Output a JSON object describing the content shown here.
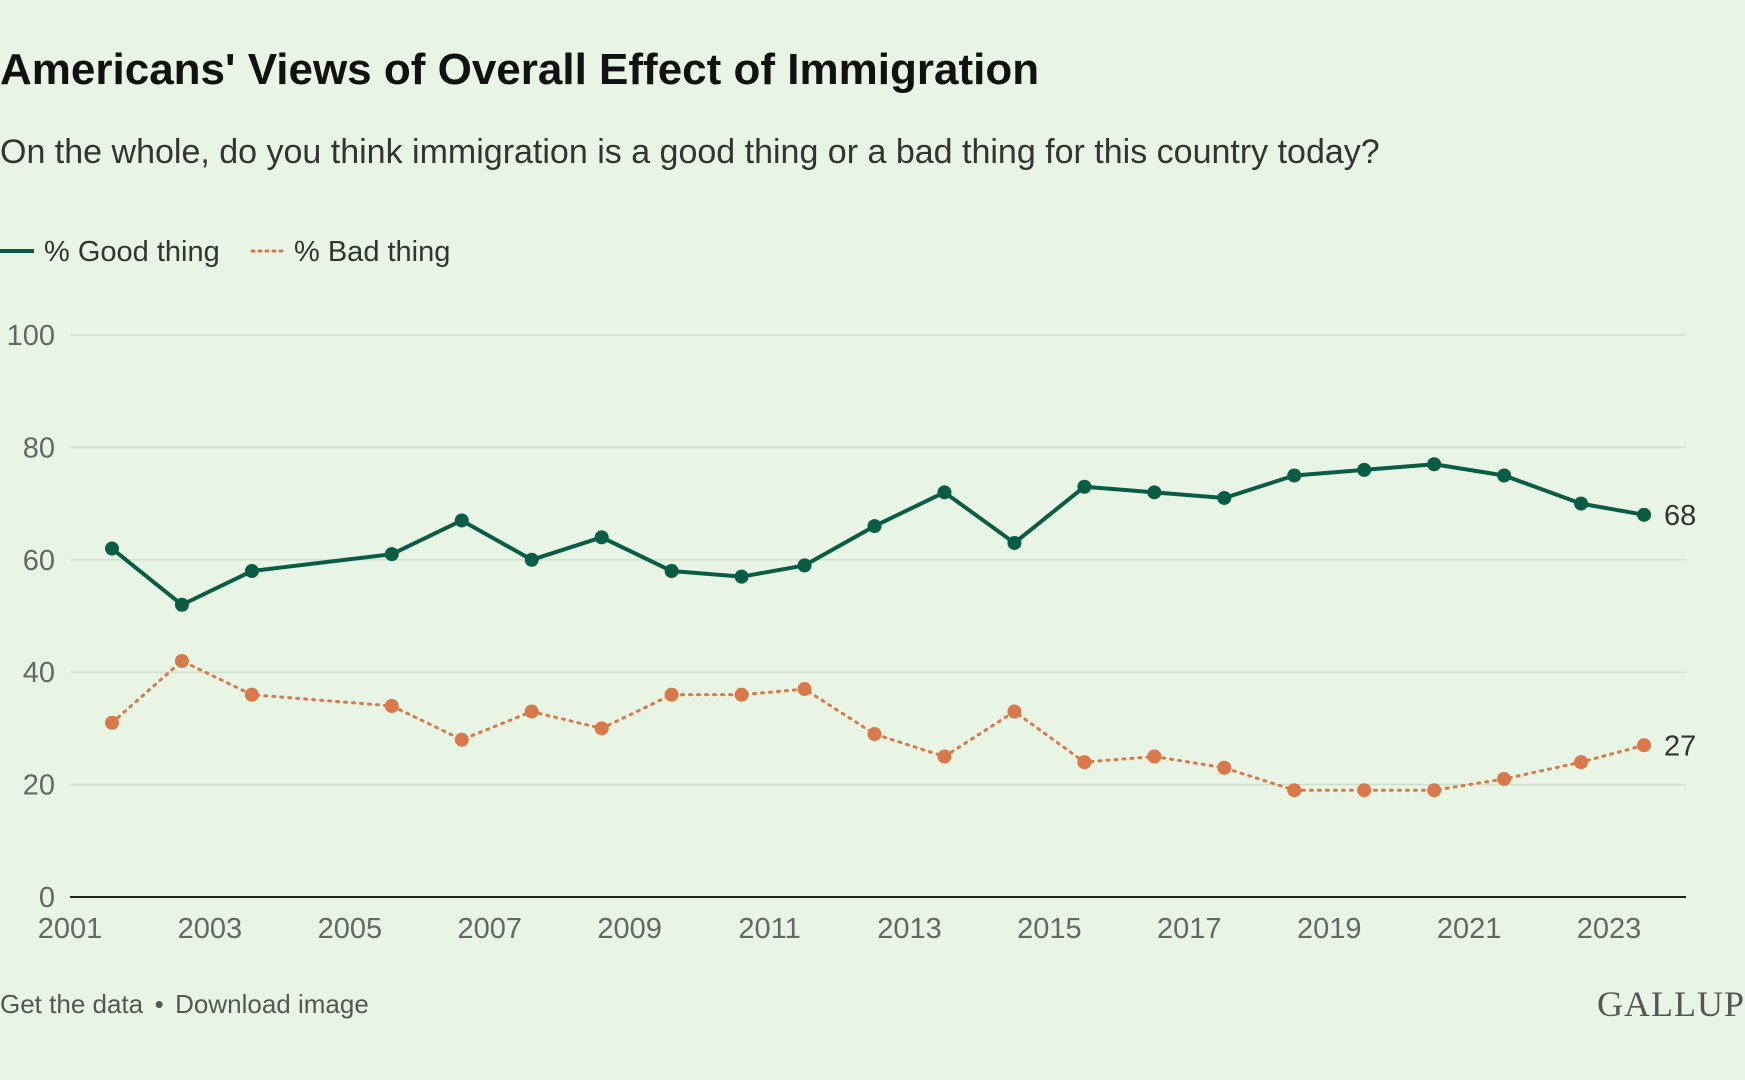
{
  "chart_data": {
    "type": "line",
    "title": "Americans' Views of Overall Effect of Immigration",
    "subtitle": "On the whole, do you think immigration is a good thing or a bad thing for this country today?",
    "x": [
      2001.6,
      2002.6,
      2003.6,
      2005.6,
      2006.6,
      2007.6,
      2008.6,
      2009.6,
      2010.6,
      2011.5,
      2012.5,
      2013.5,
      2014.5,
      2015.5,
      2016.5,
      2017.5,
      2018.5,
      2019.5,
      2020.5,
      2021.5,
      2022.6,
      2023.5
    ],
    "series": [
      {
        "name": "% Good thing",
        "color": "#0a5c45",
        "style": "solid",
        "values": [
          62,
          52,
          58,
          61,
          67,
          60,
          64,
          58,
          57,
          59,
          66,
          72,
          63,
          73,
          72,
          71,
          75,
          76,
          77,
          75,
          70,
          68
        ]
      },
      {
        "name": "% Bad thing",
        "color": "#d9784a",
        "style": "dotted",
        "values": [
          31,
          42,
          36,
          34,
          28,
          33,
          30,
          36,
          36,
          37,
          29,
          25,
          33,
          24,
          25,
          23,
          19,
          19,
          19,
          21,
          24,
          27
        ]
      }
    ],
    "end_labels": [
      "68",
      "27"
    ],
    "xticks": [
      "2001",
      "2003",
      "2005",
      "2007",
      "2009",
      "2011",
      "2013",
      "2015",
      "2017",
      "2019",
      "2021",
      "2023"
    ],
    "yticks": [
      "0",
      "20",
      "40",
      "60",
      "80",
      "100"
    ],
    "xlim": [
      2001,
      2024.1
    ],
    "ylim": [
      0,
      100
    ],
    "grid": true,
    "legend": "top-left"
  },
  "footer": {
    "get_data": "Get the data",
    "separator": "•",
    "download": "Download image"
  },
  "brand": "GALLUP"
}
